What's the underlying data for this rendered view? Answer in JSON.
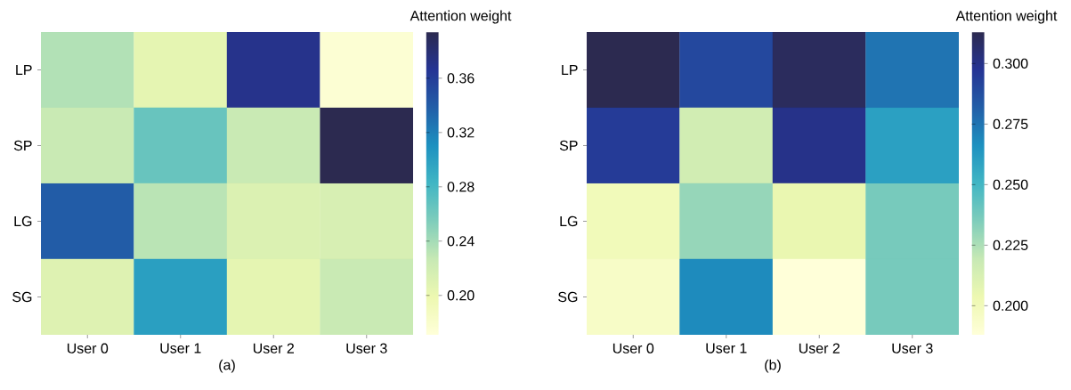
{
  "chart_data": [
    {
      "type": "heatmap",
      "xlabel": "(a)",
      "clabel": "Attention weight",
      "categories": [
        "User 0",
        "User 1",
        "User 2",
        "User 3"
      ],
      "y_categories": [
        "LP",
        "SP",
        "LG",
        "SG"
      ],
      "cells": [
        [
          0.235,
          0.205,
          0.37,
          0.175
        ],
        [
          0.225,
          0.265,
          0.225,
          0.394
        ],
        [
          0.34,
          0.232,
          0.212,
          0.215
        ],
        [
          0.21,
          0.3,
          0.205,
          0.225
        ]
      ],
      "clim": [
        0.171,
        0.394
      ],
      "cticks": [
        {
          "value": 0.2,
          "label": "0.20"
        },
        {
          "value": 0.24,
          "label": "0.24"
        },
        {
          "value": 0.28,
          "label": "0.28"
        },
        {
          "value": 0.32,
          "label": "0.32"
        },
        {
          "value": 0.36,
          "label": "0.36"
        }
      ]
    },
    {
      "type": "heatmap",
      "xlabel": "(b)",
      "clabel": "Attention weight",
      "categories": [
        "User 0",
        "User 1",
        "User 2",
        "User 3"
      ],
      "y_categories": [
        "LP",
        "SP",
        "LG",
        "SG"
      ],
      "cells": [
        [
          0.313,
          0.29,
          0.31,
          0.275
        ],
        [
          0.295,
          0.215,
          0.3,
          0.26
        ],
        [
          0.2,
          0.23,
          0.205,
          0.237
        ],
        [
          0.195,
          0.268,
          0.188,
          0.237
        ]
      ],
      "clim": [
        0.188,
        0.313
      ],
      "cticks": [
        {
          "value": 0.2,
          "label": "0.200"
        },
        {
          "value": 0.225,
          "label": "0.225"
        },
        {
          "value": 0.25,
          "label": "0.250"
        },
        {
          "value": 0.275,
          "label": "0.275"
        },
        {
          "value": 0.3,
          "label": "0.300"
        }
      ]
    }
  ]
}
